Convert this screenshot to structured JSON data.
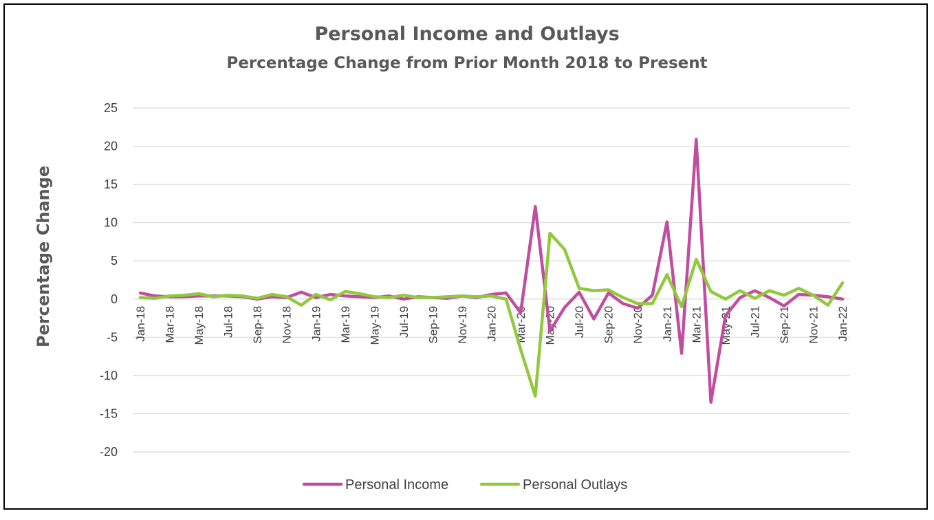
{
  "chart_data": {
    "type": "line",
    "title": "Personal Income and Outlays",
    "subtitle": "Percentage Change from Prior Month 2018 to Present",
    "ylabel": "Percentage Change",
    "xlabel": "",
    "ylim": [
      -20,
      25
    ],
    "yticks": [
      25,
      20,
      15,
      10,
      5,
      0,
      -5,
      -10,
      -15,
      -20
    ],
    "grid": true,
    "legend_position": "bottom",
    "x": [
      "Jan-18",
      "Feb-18",
      "Mar-18",
      "Apr-18",
      "May-18",
      "Jun-18",
      "Jul-18",
      "Aug-18",
      "Sep-18",
      "Oct-18",
      "Nov-18",
      "Dec-18",
      "Jan-19",
      "Feb-19",
      "Mar-19",
      "Apr-19",
      "May-19",
      "Jun-19",
      "Jul-19",
      "Aug-19",
      "Sep-19",
      "Oct-19",
      "Nov-19",
      "Dec-19",
      "Jan-20",
      "Feb-20",
      "Mar-20",
      "Apr-20",
      "May-20",
      "Jun-20",
      "Jul-20",
      "Aug-20",
      "Sep-20",
      "Oct-20",
      "Nov-20",
      "Dec-20",
      "Jan-21",
      "Feb-21",
      "Mar-21",
      "Apr-21",
      "May-21",
      "Jun-21",
      "Jul-21",
      "Aug-21",
      "Sep-21",
      "Oct-21",
      "Nov-21",
      "Dec-21",
      "Jan-22"
    ],
    "x_tick_labels": [
      "Jan-18",
      "Mar-18",
      "May-18",
      "Jul-18",
      "Sep-18",
      "Nov-18",
      "Jan-19",
      "Mar-19",
      "May-19",
      "Jul-19",
      "Sep-19",
      "Nov-19",
      "Jan-20",
      "Mar-20",
      "May-20",
      "Jul-20",
      "Sep-20",
      "Nov-20",
      "Jan-21",
      "Mar-21",
      "May-21",
      "Jul-21",
      "Sep-21",
      "Nov-21",
      "Jan-22"
    ],
    "series": [
      {
        "name": "Personal Income",
        "color": "#c04ea0",
        "values": [
          0.8,
          0.4,
          0.3,
          0.3,
          0.4,
          0.4,
          0.4,
          0.3,
          0.0,
          0.3,
          0.2,
          0.9,
          0.2,
          0.6,
          0.4,
          0.3,
          0.2,
          0.4,
          0.0,
          0.3,
          0.2,
          0.1,
          0.4,
          0.2,
          0.6,
          0.8,
          -1.8,
          12.1,
          -4.2,
          -1.1,
          0.9,
          -2.6,
          0.8,
          -0.6,
          -1.2,
          0.5,
          10.1,
          -7.1,
          20.9,
          -13.5,
          -2.2,
          0.2,
          1.1,
          0.2,
          -0.9,
          0.6,
          0.5,
          0.3,
          0.0
        ]
      },
      {
        "name": "Personal Outlays",
        "color": "#92c83e",
        "values": [
          0.2,
          0.1,
          0.4,
          0.5,
          0.7,
          0.3,
          0.5,
          0.4,
          0.1,
          0.6,
          0.3,
          -0.8,
          0.6,
          -0.1,
          1.0,
          0.7,
          0.3,
          0.2,
          0.5,
          0.2,
          0.2,
          0.3,
          0.4,
          0.3,
          0.4,
          0.0,
          -6.6,
          -12.7,
          8.6,
          6.5,
          1.4,
          1.1,
          1.2,
          0.2,
          -0.6,
          -0.6,
          3.2,
          -1.0,
          5.2,
          1.0,
          0.0,
          1.1,
          0.1,
          1.1,
          0.5,
          1.4,
          0.5,
          -0.8,
          2.1
        ]
      }
    ]
  }
}
